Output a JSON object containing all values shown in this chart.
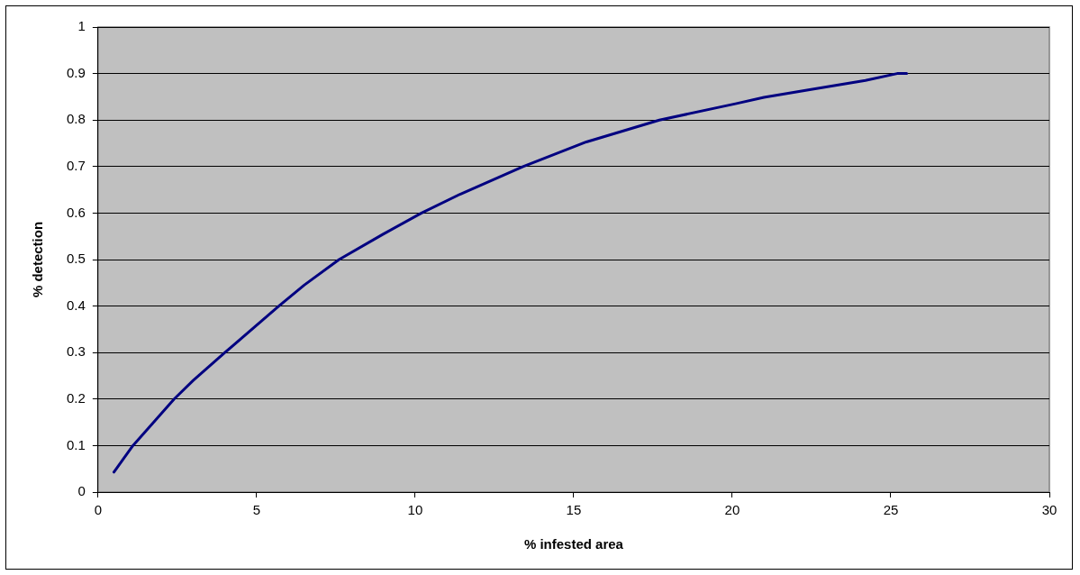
{
  "chart_data": {
    "type": "line",
    "xlabel": "% infested area",
    "ylabel": "% detection",
    "x": [
      0.5,
      1.1,
      2.4,
      3.0,
      4.0,
      5.7,
      6.5,
      7.6,
      9.0,
      10.2,
      11.4,
      13.4,
      15.4,
      17.7,
      20.1,
      21.0,
      22.4,
      24.2,
      25.2,
      25.5
    ],
    "series": [
      {
        "color": "#000080",
        "values": [
          0.043,
          0.1,
          0.2,
          0.24,
          0.3,
          0.4,
          0.445,
          0.5,
          0.555,
          0.6,
          0.64,
          0.7,
          0.753,
          0.8,
          0.835,
          0.849,
          0.865,
          0.885,
          0.9,
          0.9
        ]
      }
    ],
    "xlim": [
      0,
      30
    ],
    "xticks": [
      0,
      5,
      10,
      15,
      20,
      25,
      30
    ],
    "ylim": [
      0,
      1
    ],
    "yticks": [
      0,
      0.1,
      0.2,
      0.3,
      0.4,
      0.5,
      0.6,
      0.7,
      0.8,
      0.9,
      1
    ],
    "grid": "y",
    "legend": false,
    "marker": "none",
    "line_style": "solid"
  }
}
